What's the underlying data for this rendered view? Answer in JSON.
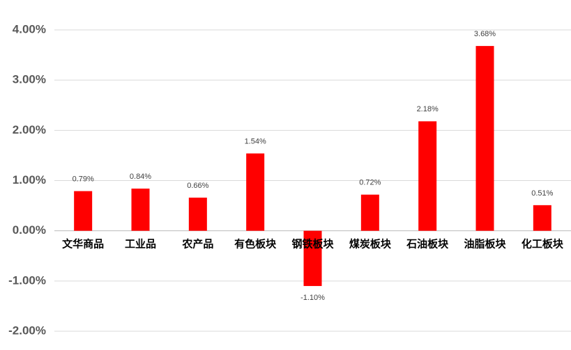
{
  "chart_data": {
    "type": "bar",
    "categories": [
      "文华商品",
      "工业品",
      "农产品",
      "有色板块",
      "钢铁板块",
      "煤炭板块",
      "石油板块",
      "油脂板块",
      "化工板块"
    ],
    "values": [
      0.79,
      0.84,
      0.66,
      1.54,
      -1.1,
      0.72,
      2.18,
      3.68,
      0.51
    ],
    "value_labels": [
      "0.79%",
      "0.84%",
      "0.66%",
      "1.54%",
      "-1.10%",
      "0.72%",
      "2.18%",
      "3.68%",
      "0.51%"
    ],
    "color": "#ff0000",
    "ylim": [
      -2,
      4
    ],
    "yticks": [
      {
        "value": -2,
        "label": "-2.00%"
      },
      {
        "value": -1,
        "label": "-1.00%"
      },
      {
        "value": 0,
        "label": "0.00%"
      },
      {
        "value": 1,
        "label": "1.00%"
      },
      {
        "value": 2,
        "label": "2.00%"
      },
      {
        "value": 3,
        "label": "3.00%"
      },
      {
        "value": 4,
        "label": "4.00%"
      }
    ],
    "grid": true
  }
}
